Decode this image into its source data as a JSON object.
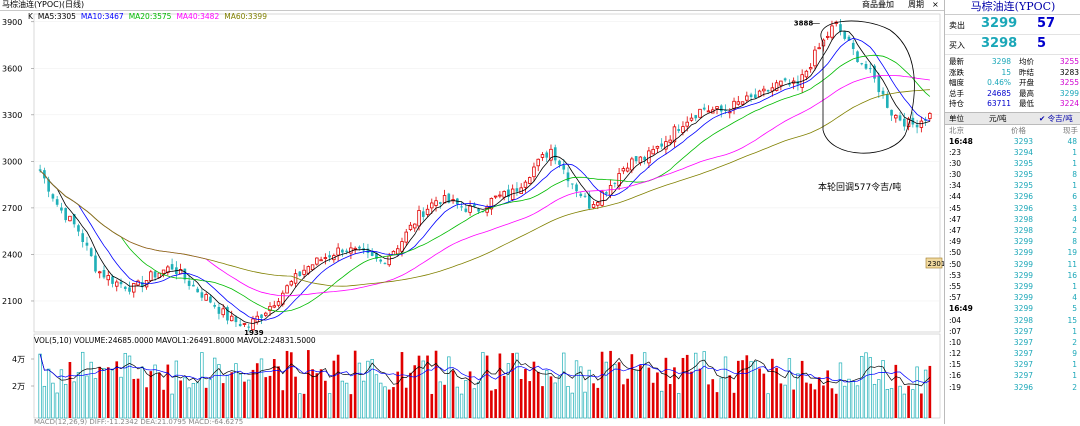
{
  "window": {
    "title": "马棕油连(YPOC)(日线)",
    "toolbar_buttons": [
      "商品叠加",
      "周期"
    ],
    "close_glyph": "×"
  },
  "main_chart": {
    "ma_labels": [
      {
        "name": "K",
        "color": "#000000"
      },
      {
        "name": "MA5:3305",
        "color": "#000000"
      },
      {
        "name": "MA10:3467",
        "color": "#0000ff"
      },
      {
        "name": "MA20:3575",
        "color": "#00bb00"
      },
      {
        "name": "MA40:3482",
        "color": "#ff00ff"
      },
      {
        "name": "MA60:3399",
        "color": "#808000"
      }
    ],
    "y_ticks": [
      "3900",
      "3600",
      "3300",
      "3000",
      "2700",
      "2400",
      "2100"
    ],
    "high_label": "3888",
    "low_label": "1939",
    "price_tag": "2301",
    "annotation": "本轮回调577令吉/吨"
  },
  "volume_chart": {
    "header": "VOL(5,10) VOLUME:24685.0000 MAVOL1:26491.8000 MAVOL2:24831.5000",
    "y_ticks": [
      "4万",
      "2万"
    ]
  },
  "macd_header": "MACD(12,26,9) DIFF:-11.2342 DEA:21.0795 MACD:-64.6275",
  "chart_data": {
    "type": "candlestick",
    "ylim": [
      1900,
      3950
    ],
    "y_ticks": [
      2100,
      2400,
      2700,
      3000,
      3300,
      3600,
      3900
    ],
    "high": 3888,
    "low": 1939,
    "close": 3298,
    "key_points": [
      2940,
      2700,
      2560,
      2300,
      2220,
      2180,
      2270,
      2320,
      2200,
      2100,
      1980,
      1939,
      2050,
      2180,
      2310,
      2380,
      2440,
      2400,
      2350,
      2470,
      2650,
      2760,
      2720,
      2680,
      2760,
      2800,
      2950,
      3080,
      2880,
      2720,
      2830,
      2990,
      3020,
      3130,
      3260,
      3340,
      3320,
      3380,
      3420,
      3500,
      3480,
      3700,
      3888,
      3700,
      3540,
      3311,
      3230,
      3298
    ],
    "ma_values": {
      "MA5": 3305,
      "MA10": 3467,
      "MA20": 3575,
      "MA40": 3482,
      "MA60": 3399
    },
    "volume": {
      "VOLUME": 24685,
      "MAVOL1": 26491.8,
      "MAVOL2": 24831.5
    },
    "volume_yticks": [
      "2万",
      "4万"
    ]
  },
  "quote_panel": {
    "name": "马棕油连(YPOC)",
    "sell": {
      "label": "卖出",
      "price": "3299",
      "vol": "57"
    },
    "buy": {
      "label": "买入",
      "price": "3298",
      "vol": "5"
    },
    "stats": [
      {
        "l1": "最新",
        "v1": "3298",
        "c1": "#1aa7b8",
        "l2": "均价",
        "v2": "3255",
        "c2": "#d000d0"
      },
      {
        "l1": "涨跌",
        "v1": "15",
        "c1": "#1aa7b8",
        "l2": "昨结",
        "v2": "3283",
        "c2": "#000000"
      },
      {
        "l1": "幅度",
        "v1": "0.46%",
        "c1": "#1aa7b8",
        "l2": "开盘",
        "v2": "3255",
        "c2": "#d000d0"
      },
      {
        "l1": "总手",
        "v1": "24685",
        "c1": "#0000cc",
        "l2": "最高",
        "v2": "3299",
        "c2": "#1aa7b8"
      },
      {
        "l1": "持仓",
        "v1": "63711",
        "c1": "#0000cc",
        "l2": "最低",
        "v2": "3224",
        "c2": "#d000d0"
      }
    ],
    "unit_label": "单位",
    "unit_value": "元/吨",
    "currency": "✔ 令吉/吨",
    "tick_header": {
      "city": "北京",
      "price": "价格",
      "qty": "现手"
    },
    "ticks": [
      {
        "t": "16:48",
        "p": "3293",
        "q": "48",
        "bold": true
      },
      {
        "t": ":23",
        "p": "3294",
        "q": "1"
      },
      {
        "t": ":30",
        "p": "3295",
        "q": "1"
      },
      {
        "t": ":30",
        "p": "3295",
        "q": "8"
      },
      {
        "t": ":34",
        "p": "3295",
        "q": "1"
      },
      {
        "t": ":44",
        "p": "3296",
        "q": "6"
      },
      {
        "t": ":45",
        "p": "3296",
        "q": "3"
      },
      {
        "t": ":47",
        "p": "3298",
        "q": "4"
      },
      {
        "t": ":47",
        "p": "3298",
        "q": "2"
      },
      {
        "t": ":49",
        "p": "3299",
        "q": "8"
      },
      {
        "t": ":50",
        "p": "3299",
        "q": "19"
      },
      {
        "t": ":50",
        "p": "3299",
        "q": "11"
      },
      {
        "t": ":53",
        "p": "3299",
        "q": "16"
      },
      {
        "t": ":55",
        "p": "3299",
        "q": "1"
      },
      {
        "t": ":57",
        "p": "3299",
        "q": "4"
      },
      {
        "t": "16:49",
        "p": "3299",
        "q": "5",
        "bold": true
      },
      {
        "t": ":04",
        "p": "3298",
        "q": "15"
      },
      {
        "t": ":07",
        "p": "3297",
        "q": "1"
      },
      {
        "t": ":10",
        "p": "3297",
        "q": "2"
      },
      {
        "t": ":12",
        "p": "3297",
        "q": "9"
      },
      {
        "t": ":15",
        "p": "3297",
        "q": "1"
      },
      {
        "t": ":16",
        "p": "3297",
        "q": "1"
      },
      {
        "t": ":19",
        "p": "3296",
        "q": "2"
      }
    ]
  }
}
